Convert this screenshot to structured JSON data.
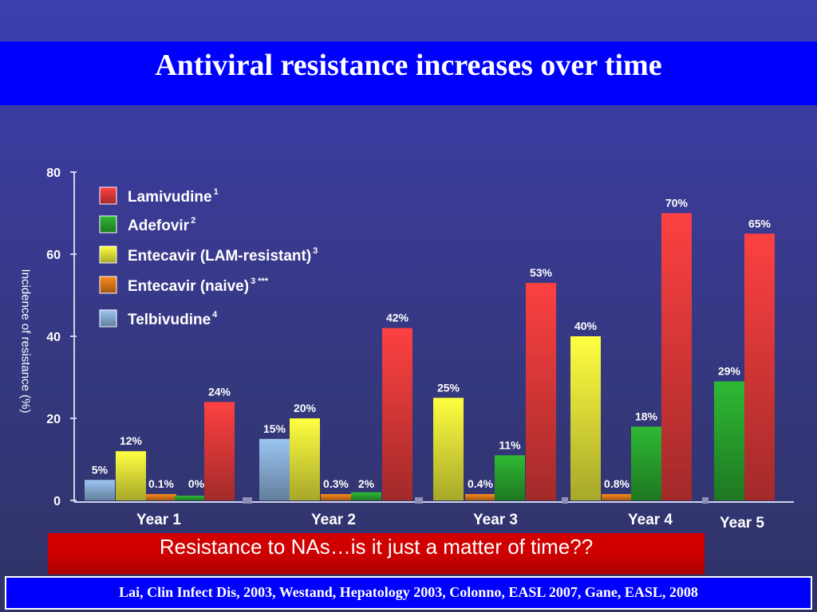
{
  "slide": {
    "title": "Antiviral resistance  increases  over time",
    "banner": "Resistance to NAs…is it just a matter of time??",
    "citation": "Lai, Clin Infect Dis, 2003, Westand, Hepatology 2003, Colonno, EASL 2007, Gane,  EASL, 2008"
  },
  "colors": {
    "Lamivudine": "#e23a3a",
    "Adefovir": "#2aa52e",
    "Entecavir (LAM-resistant)": "#e8e83a",
    "Entecavir (naive)": "#e07a1a",
    "Telbivudine": "#8ab0d8"
  },
  "chart_data": {
    "type": "bar",
    "ylabel": "Incidence of resistance (%)",
    "ylim": [
      0,
      80
    ],
    "yticks": [
      "0",
      "20",
      "40",
      "60",
      "80"
    ],
    "categories": [
      "Year 1",
      "Year 2",
      "Year 3",
      "Year 4",
      "Year 5"
    ],
    "legend": [
      {
        "name": "Lamivudine",
        "sup": "1"
      },
      {
        "name": "Adefovir",
        "sup": "2"
      },
      {
        "name": "Entecavir (LAM-resistant)",
        "sup": "3"
      },
      {
        "name": "Entecavir (naive)",
        "sup": "3 ***"
      },
      {
        "name": "Telbivudine",
        "sup": "4"
      }
    ],
    "legend_position": "top-left",
    "bars": [
      {
        "category": "Year 1",
        "series": "Telbivudine",
        "value": 5,
        "label": "5%"
      },
      {
        "category": "Year 1",
        "series": "Entecavir (LAM-resistant)",
        "value": 12,
        "label": "12%"
      },
      {
        "category": "Year 1",
        "series": "Entecavir (naive)",
        "value": 0.1,
        "label": "0.1%"
      },
      {
        "category": "Year 1",
        "series": "Adefovir",
        "value": 0,
        "label": "0%"
      },
      {
        "category": "Year 1",
        "series": "Lamivudine",
        "value": 24,
        "label": "24%"
      },
      {
        "category": "Year 2",
        "series": "Telbivudine",
        "value": 15,
        "label": "15%"
      },
      {
        "category": "Year 2",
        "series": "Entecavir (LAM-resistant)",
        "value": 20,
        "label": "20%"
      },
      {
        "category": "Year 2",
        "series": "Entecavir (naive)",
        "value": 0.3,
        "label": "0.3%"
      },
      {
        "category": "Year 2",
        "series": "Adefovir",
        "value": 2,
        "label": "2%"
      },
      {
        "category": "Year 2",
        "series": "Lamivudine",
        "value": 42,
        "label": "42%"
      },
      {
        "category": "Year 3",
        "series": "Entecavir (LAM-resistant)",
        "value": 25,
        "label": "25%"
      },
      {
        "category": "Year 3",
        "series": "Entecavir (naive)",
        "value": 0.4,
        "label": "0.4%"
      },
      {
        "category": "Year 3",
        "series": "Adefovir",
        "value": 11,
        "label": "11%"
      },
      {
        "category": "Year 3",
        "series": "Lamivudine",
        "value": 53,
        "label": "53%"
      },
      {
        "category": "Year 4",
        "series": "Entecavir (LAM-resistant)",
        "value": 40,
        "label": "40%"
      },
      {
        "category": "Year 4",
        "series": "Entecavir (naive)",
        "value": 0.8,
        "label": "0.8%"
      },
      {
        "category": "Year 4",
        "series": "Adefovir",
        "value": 18,
        "label": "18%"
      },
      {
        "category": "Year 4",
        "series": "Lamivudine",
        "value": 70,
        "label": "70%"
      },
      {
        "category": "Year 5",
        "series": "Adefovir",
        "value": 29,
        "label": "29%"
      },
      {
        "category": "Year 5",
        "series": "Lamivudine",
        "value": 65,
        "label": "65%"
      }
    ]
  }
}
